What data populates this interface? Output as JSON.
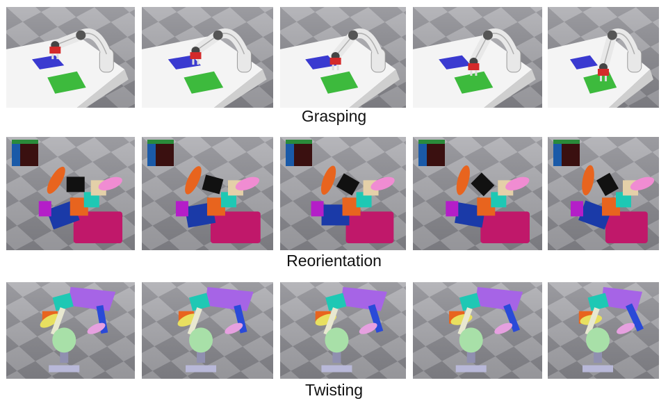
{
  "rows": [
    {
      "caption": "Grasping",
      "scene": "robot-arm-grasping",
      "colors": {
        "table": "#f4f4f4",
        "target_blue": "#3a3ad0",
        "target_green": "#3dba3d",
        "arm": "#e8e8e8",
        "gripper": "#d42a2a"
      },
      "frames": [
        {
          "name": "grasp-frame-1",
          "arm_stage": 0.0
        },
        {
          "name": "grasp-frame-2",
          "arm_stage": 0.25
        },
        {
          "name": "grasp-frame-3",
          "arm_stage": 0.5
        },
        {
          "name": "grasp-frame-4",
          "arm_stage": 0.75
        },
        {
          "name": "grasp-frame-5",
          "arm_stage": 1.0
        }
      ]
    },
    {
      "caption": "Reorientation",
      "scene": "dexterous-hand-cube-reorientation",
      "colors": {
        "magenta": "#c0186a",
        "orange": "#e8641e",
        "blue": "#1a3aa8",
        "cyan": "#1ec8b4",
        "pink": "#f08cd2",
        "beige": "#e4d0a8",
        "purple": "#b41ec8"
      },
      "frames": [
        {
          "name": "reorient-frame-1",
          "cube_rotation": 0.0
        },
        {
          "name": "reorient-frame-2",
          "cube_rotation": 0.25
        },
        {
          "name": "reorient-frame-3",
          "cube_rotation": 0.5
        },
        {
          "name": "reorient-frame-4",
          "cube_rotation": 0.75
        },
        {
          "name": "reorient-frame-5",
          "cube_rotation": 1.0
        }
      ]
    },
    {
      "caption": "Twisting",
      "scene": "dexterous-hand-bulb-twisting",
      "colors": {
        "palm": "#a664e6",
        "bulb": "#a8e0a8",
        "base": "#b8b8d8",
        "cyan": "#1ec8b4",
        "orange": "#e8641e",
        "yellow": "#e8e060",
        "blue": "#2a4ad8",
        "pink": "#e6a0e0"
      },
      "frames": [
        {
          "name": "twist-frame-1",
          "twist_stage": 0.0
        },
        {
          "name": "twist-frame-2",
          "twist_stage": 0.25
        },
        {
          "name": "twist-frame-3",
          "twist_stage": 0.5
        },
        {
          "name": "twist-frame-4",
          "twist_stage": 0.75
        },
        {
          "name": "twist-frame-5",
          "twist_stage": 1.0
        }
      ]
    }
  ]
}
